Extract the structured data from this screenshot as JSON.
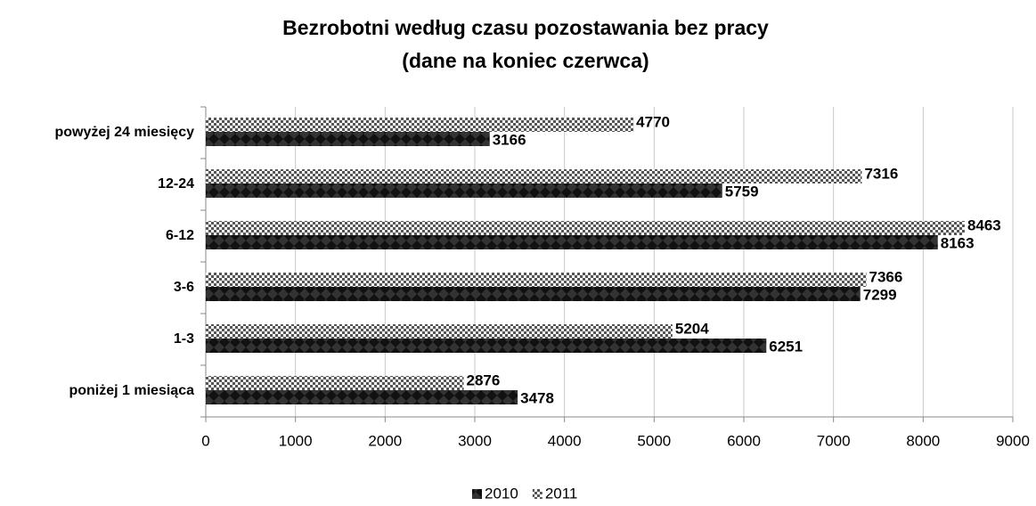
{
  "chart_data": {
    "type": "hbar",
    "title": "Bezrobotni według czasu pozostawania bez pracy",
    "subtitle": "(dane na koniec czerwca)",
    "categories": [
      "poniżej 1 miesiąca",
      "1-3",
      "3-6",
      "6-12",
      "12-24",
      "powyżej 24 miesięcy"
    ],
    "series": [
      {
        "name": "2010",
        "color": "#333333",
        "values": [
          3478,
          6251,
          7299,
          8163,
          5759,
          3166
        ]
      },
      {
        "name": "2011",
        "color": "#555555",
        "values": [
          2876,
          5204,
          7366,
          8463,
          7316,
          4770
        ]
      }
    ],
    "xlim": [
      0,
      9000
    ],
    "xticks": [
      0,
      1000,
      2000,
      3000,
      4000,
      5000,
      6000,
      7000,
      8000,
      9000
    ],
    "grid": true,
    "legend": "bottom"
  }
}
